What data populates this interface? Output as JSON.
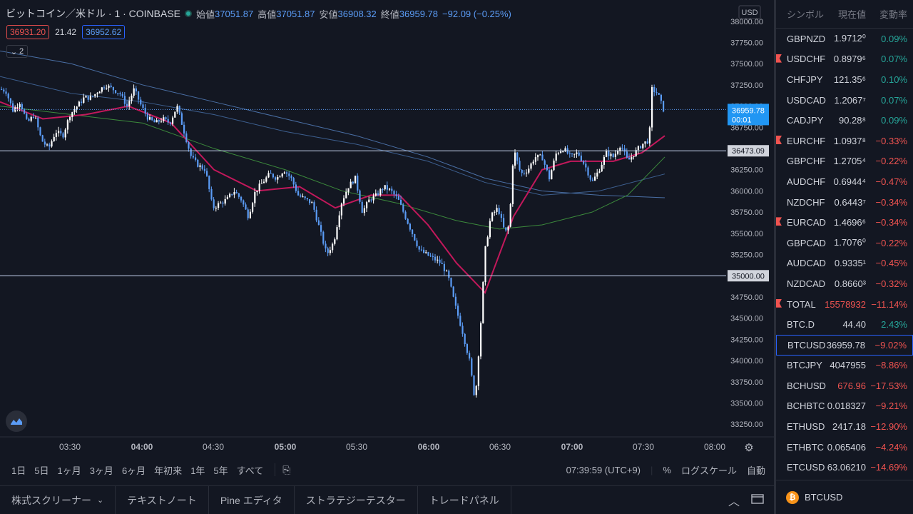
{
  "header": {
    "symbol_title": "ビットコイン／米ドル · 1 · COINBASE",
    "open_label": "始値",
    "open_value": "37051.87",
    "high_label": "高値",
    "high_value": "37051.87",
    "low_label": "安値",
    "low_value": "36908.32",
    "close_label": "終値",
    "close_value": "36959.78",
    "change_value": "−92.09 (−0.25%)",
    "bid": "36931.20",
    "spread": "21.42",
    "ask": "36952.62",
    "indicators_collapsed": "2",
    "currency": "USD"
  },
  "bottom_bar": {
    "ranges": [
      "1日",
      "5日",
      "1ヶ月",
      "3ヶ月",
      "6ヶ月",
      "年初来",
      "1年",
      "5年",
      "すべて"
    ],
    "clock": "07:39:59 (UTC+9)",
    "percent": "%",
    "log_scale": "ログスケール",
    "auto": "自動"
  },
  "tabs": [
    "株式スクリーナー",
    "テキストノート",
    "Pine エディタ",
    "ストラテジーテスター",
    "トレードパネル"
  ],
  "watchlist": {
    "col_symbol": "シンボル",
    "col_price": "現在値",
    "col_change": "変動率",
    "rows": [
      {
        "symbol": "GBPNZD",
        "price": "1.9712⁰",
        "change": "0.09%",
        "dir": "up",
        "flag": false
      },
      {
        "symbol": "USDCHF",
        "price": "0.8979⁶",
        "change": "0.07%",
        "dir": "up",
        "flag": true
      },
      {
        "symbol": "CHFJPY",
        "price": "121.35⁶",
        "change": "0.10%",
        "dir": "up",
        "flag": false
      },
      {
        "symbol": "USDCAD",
        "price": "1.2067⁷",
        "change": "0.07%",
        "dir": "up",
        "flag": false
      },
      {
        "symbol": "CADJPY",
        "price": "90.28⁸",
        "change": "0.09%",
        "dir": "up",
        "flag": false
      },
      {
        "symbol": "EURCHF",
        "price": "1.0937⁸",
        "change": "−0.33%",
        "dir": "dn",
        "flag": true
      },
      {
        "symbol": "GBPCHF",
        "price": "1.2705⁴",
        "change": "−0.22%",
        "dir": "dn",
        "flag": false
      },
      {
        "symbol": "AUDCHF",
        "price": "0.6944⁴",
        "change": "−0.47%",
        "dir": "dn",
        "flag": false
      },
      {
        "symbol": "NZDCHF",
        "price": "0.6443⁷",
        "change": "−0.34%",
        "dir": "dn",
        "flag": false
      },
      {
        "symbol": "EURCAD",
        "price": "1.4696⁶",
        "change": "−0.34%",
        "dir": "dn",
        "flag": true
      },
      {
        "symbol": "GBPCAD",
        "price": "1.7076⁰",
        "change": "−0.22%",
        "dir": "dn",
        "flag": false
      },
      {
        "symbol": "AUDCAD",
        "price": "0.9335¹",
        "change": "−0.45%",
        "dir": "dn",
        "flag": false
      },
      {
        "symbol": "NZDCAD",
        "price": "0.8660³",
        "change": "−0.32%",
        "dir": "dn",
        "flag": false
      },
      {
        "symbol": "TOTAL",
        "price": "15578932",
        "change": "−11.14%",
        "dir": "dn",
        "flag": true,
        "price_dir": "dn"
      },
      {
        "symbol": "BTC.D",
        "price": "44.40",
        "change": "2.43%",
        "dir": "up",
        "flag": false
      },
      {
        "symbol": "BTCUSD",
        "price": "36959.78",
        "change": "−9.02%",
        "dir": "dn",
        "flag": false,
        "selected": true
      },
      {
        "symbol": "BTCJPY",
        "price": "4047955",
        "change": "−8.86%",
        "dir": "dn",
        "flag": false
      },
      {
        "symbol": "BCHUSD",
        "price": "676.96",
        "change": "−17.53%",
        "dir": "dn",
        "flag": false,
        "price_dir": "dn"
      },
      {
        "symbol": "BCHBTC",
        "price": "0.018327",
        "change": "−9.21%",
        "dir": "dn",
        "flag": false
      },
      {
        "symbol": "ETHUSD",
        "price": "2417.18",
        "change": "−12.90%",
        "dir": "dn",
        "flag": false
      },
      {
        "symbol": "ETHBTC",
        "price": "0.065406",
        "change": "−4.24%",
        "dir": "dn",
        "flag": false
      },
      {
        "symbol": "ETCUSD",
        "price": "63.06210",
        "change": "−14.69%",
        "dir": "dn",
        "flag": false
      }
    ],
    "footer_symbol": "BTCUSD"
  },
  "colors": {
    "up": "#26a69a",
    "down": "#ef5350",
    "accent": "#2962ff",
    "candle": "#5b9cf6"
  },
  "chart_data": {
    "type": "candlestick",
    "xlabels": [
      "03:30",
      "04:00",
      "04:30",
      "05:00",
      "05:30",
      "06:00",
      "06:30",
      "07:00",
      "07:30",
      "08:00"
    ],
    "ylabels": [
      "38000.00",
      "37750.00",
      "37500.00",
      "37250.00",
      "37000.00",
      "36750.00",
      "36500.00",
      "36250.00",
      "36000.00",
      "35750.00",
      "35500.00",
      "35250.00",
      "35000.00",
      "34750.00",
      "34500.00",
      "34250.00",
      "34000.00",
      "33750.00",
      "33500.00",
      "33250.00"
    ],
    "ylim": [
      33100,
      38150
    ],
    "last_price_label": "36959.78",
    "countdown": "00:01",
    "hline_labels": [
      "36473.09",
      "35000.00"
    ],
    "hlines": [
      36473.09,
      35000.0
    ],
    "price_path": [
      [
        0,
        37200
      ],
      [
        8,
        37180
      ],
      [
        18,
        36950
      ],
      [
        28,
        37050
      ],
      [
        38,
        36800
      ],
      [
        48,
        36900
      ],
      [
        58,
        36600
      ],
      [
        68,
        36500
      ],
      [
        78,
        36700
      ],
      [
        88,
        36650
      ],
      [
        98,
        36900
      ],
      [
        108,
        37000
      ],
      [
        118,
        37100
      ],
      [
        128,
        37100
      ],
      [
        138,
        37180
      ],
      [
        148,
        37250
      ],
      [
        158,
        37200
      ],
      [
        168,
        37150
      ],
      [
        178,
        37000
      ],
      [
        188,
        37200
      ],
      [
        198,
        37000
      ],
      [
        208,
        36850
      ],
      [
        218,
        36800
      ],
      [
        228,
        36850
      ],
      [
        238,
        36800
      ],
      [
        248,
        37000
      ],
      [
        258,
        36700
      ],
      [
        268,
        36400
      ],
      [
        278,
        36300
      ],
      [
        288,
        36250
      ],
      [
        298,
        35800
      ],
      [
        308,
        35850
      ],
      [
        318,
        35900
      ],
      [
        328,
        36000
      ],
      [
        338,
        35900
      ],
      [
        348,
        35700
      ],
      [
        358,
        36000
      ],
      [
        368,
        36100
      ],
      [
        378,
        36200
      ],
      [
        388,
        36150
      ],
      [
        398,
        36250
      ],
      [
        408,
        36150
      ],
      [
        418,
        35950
      ],
      [
        428,
        35900
      ],
      [
        438,
        35850
      ],
      [
        448,
        35550
      ],
      [
        458,
        35250
      ],
      [
        468,
        35400
      ],
      [
        478,
        35850
      ],
      [
        488,
        36050
      ],
      [
        498,
        36150
      ],
      [
        508,
        35750
      ],
      [
        518,
        35900
      ],
      [
        528,
        35950
      ],
      [
        538,
        36050
      ],
      [
        548,
        36000
      ],
      [
        558,
        35900
      ],
      [
        568,
        35700
      ],
      [
        578,
        35500
      ],
      [
        588,
        35300
      ],
      [
        598,
        35250
      ],
      [
        608,
        35200
      ],
      [
        618,
        35150
      ],
      [
        628,
        35000
      ],
      [
        638,
        34650
      ],
      [
        648,
        34350
      ],
      [
        658,
        34000
      ],
      [
        666,
        33520
      ],
      [
        674,
        34450
      ],
      [
        680,
        35300
      ],
      [
        688,
        35700
      ],
      [
        698,
        35800
      ],
      [
        708,
        35500
      ],
      [
        714,
        35600
      ],
      [
        720,
        36500
      ],
      [
        730,
        36200
      ],
      [
        740,
        36250
      ],
      [
        750,
        36400
      ],
      [
        760,
        36400
      ],
      [
        770,
        36150
      ],
      [
        780,
        36450
      ],
      [
        790,
        36500
      ],
      [
        800,
        36400
      ],
      [
        810,
        36450
      ],
      [
        820,
        36300
      ],
      [
        830,
        36100
      ],
      [
        840,
        36250
      ],
      [
        850,
        36450
      ],
      [
        860,
        36400
      ],
      [
        870,
        36550
      ],
      [
        880,
        36350
      ],
      [
        890,
        36450
      ],
      [
        900,
        36550
      ],
      [
        910,
        36600
      ],
      [
        914,
        37200
      ],
      [
        922,
        37150
      ],
      [
        930,
        36960
      ]
    ],
    "ma_red": [
      [
        0,
        37050
      ],
      [
        60,
        36850
      ],
      [
        120,
        36900
      ],
      [
        180,
        37000
      ],
      [
        240,
        36800
      ],
      [
        300,
        36250
      ],
      [
        360,
        36000
      ],
      [
        420,
        36050
      ],
      [
        470,
        35800
      ],
      [
        520,
        35950
      ],
      [
        560,
        35950
      ],
      [
        600,
        35600
      ],
      [
        640,
        35150
      ],
      [
        680,
        34800
      ],
      [
        720,
        35700
      ],
      [
        760,
        36250
      ],
      [
        800,
        36350
      ],
      [
        860,
        36350
      ],
      [
        900,
        36450
      ],
      [
        932,
        36650
      ]
    ],
    "ma_green": [
      [
        0,
        37000
      ],
      [
        100,
        36900
      ],
      [
        200,
        36800
      ],
      [
        300,
        36500
      ],
      [
        400,
        36250
      ],
      [
        480,
        36000
      ],
      [
        560,
        35850
      ],
      [
        640,
        35650
      ],
      [
        700,
        35550
      ],
      [
        760,
        35600
      ],
      [
        830,
        35750
      ],
      [
        880,
        35950
      ],
      [
        932,
        36400
      ]
    ],
    "ma_blue1": [
      [
        0,
        37650
      ],
      [
        100,
        37500
      ],
      [
        200,
        37250
      ],
      [
        300,
        37050
      ],
      [
        400,
        36850
      ],
      [
        500,
        36650
      ],
      [
        600,
        36400
      ],
      [
        680,
        36150
      ],
      [
        760,
        36000
      ],
      [
        840,
        35950
      ],
      [
        932,
        35920
      ]
    ],
    "ma_blue2": [
      [
        0,
        37350
      ],
      [
        100,
        37150
      ],
      [
        200,
        37050
      ],
      [
        300,
        36900
      ],
      [
        400,
        36700
      ],
      [
        500,
        36550
      ],
      [
        600,
        36350
      ],
      [
        680,
        36100
      ],
      [
        760,
        35950
      ],
      [
        840,
        36000
      ],
      [
        932,
        36200
      ]
    ]
  }
}
